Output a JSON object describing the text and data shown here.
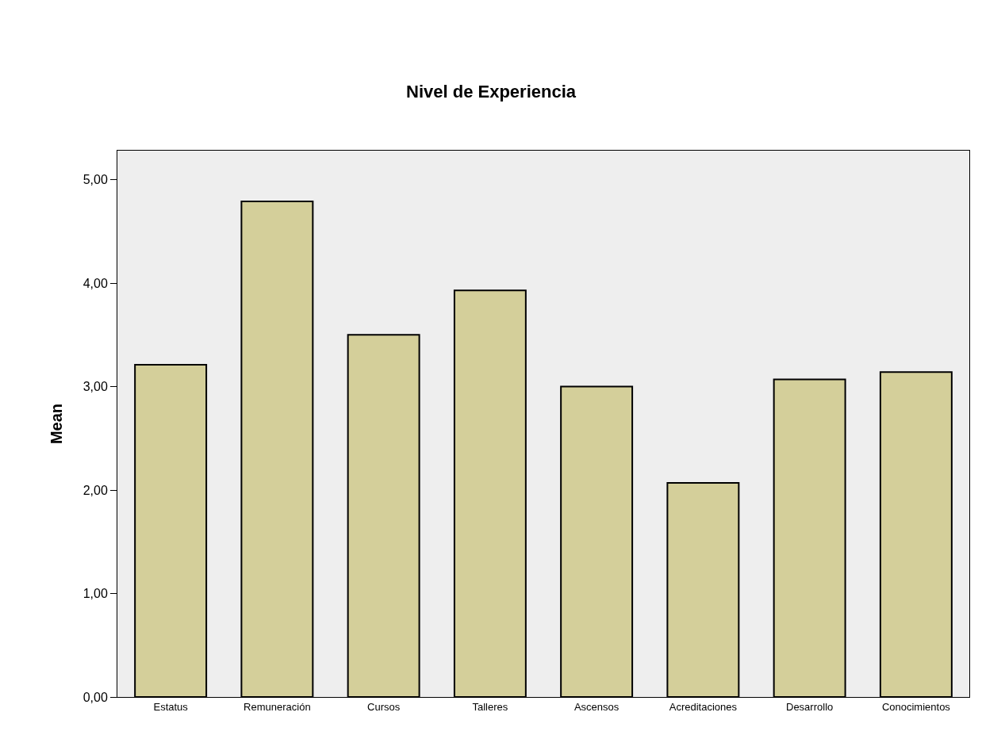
{
  "chart_data": {
    "type": "bar",
    "title": "Nivel de Experiencia",
    "ylabel": "Mean",
    "categories": [
      "Estatus",
      "Remuneración",
      "Cursos",
      "Talleres",
      "Ascensos",
      "Acreditaciones",
      "Desarrollo",
      "Conocimientos"
    ],
    "values": [
      3.21,
      4.79,
      3.5,
      3.93,
      3.0,
      2.07,
      3.07,
      3.14
    ],
    "color": "#d4cf9a",
    "ylim": [
      0,
      5.28
    ],
    "yticks": [
      {
        "value": 0,
        "label": "0,00"
      },
      {
        "value": 1,
        "label": "1,00"
      },
      {
        "value": 2,
        "label": "2,00"
      },
      {
        "value": 3,
        "label": "3,00"
      },
      {
        "value": 4,
        "label": "4,00"
      },
      {
        "value": 5,
        "label": "5,00"
      }
    ],
    "grid": false
  }
}
